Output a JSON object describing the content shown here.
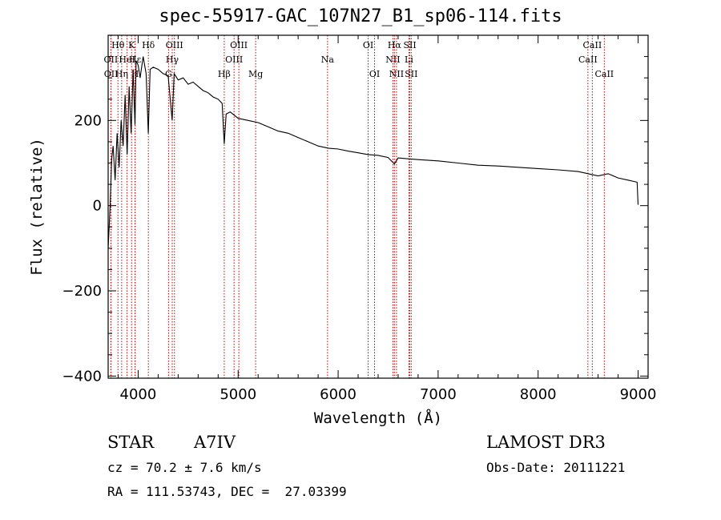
{
  "chart_data": {
    "type": "line",
    "title": "spec-55917-GAC_107N27_B1_sp06-114.fits",
    "xlabel": "Wavelength (Å)",
    "ylabel": "Flux (relative)",
    "xlim": [
      3700,
      9100
    ],
    "ylim": [
      -405,
      400
    ],
    "xticks": [
      4000,
      5000,
      6000,
      7000,
      8000,
      9000
    ],
    "yticks": [
      -400,
      -200,
      0,
      200
    ],
    "xtick_labels": [
      "4000",
      "5000",
      "6000",
      "7000",
      "8000",
      "9000"
    ],
    "ytick_labels": [
      "−400",
      "−200",
      "0",
      "200"
    ],
    "series": [
      {
        "name": "spectrum",
        "x": [
          3700,
          3720,
          3735,
          3750,
          3770,
          3790,
          3810,
          3830,
          3850,
          3870,
          3890,
          3910,
          3930,
          3950,
          3968,
          3980,
          4000,
          4020,
          4050,
          4080,
          4101,
          4120,
          4150,
          4200,
          4250,
          4300,
          4340,
          4360,
          4400,
          4450,
          4500,
          4550,
          4600,
          4650,
          4700,
          4750,
          4800,
          4840,
          4861,
          4880,
          4920,
          5000,
          5100,
          5200,
          5300,
          5400,
          5500,
          5600,
          5700,
          5800,
          5900,
          6000,
          6100,
          6200,
          6300,
          6400,
          6500,
          6563,
          6600,
          6700,
          6800,
          7000,
          7200,
          7400,
          7600,
          7800,
          8000,
          8200,
          8400,
          8500,
          8600,
          8700,
          8800,
          8900,
          8990,
          9000
        ],
        "y": [
          -100,
          0,
          110,
          140,
          60,
          170,
          90,
          200,
          140,
          260,
          120,
          280,
          170,
          320,
          190,
          340,
          330,
          300,
          350,
          310,
          170,
          320,
          325,
          320,
          310,
          305,
          200,
          310,
          295,
          300,
          285,
          290,
          280,
          270,
          265,
          255,
          250,
          240,
          145,
          215,
          220,
          205,
          200,
          195,
          185,
          175,
          170,
          160,
          150,
          140,
          135,
          133,
          128,
          124,
          120,
          118,
          113,
          98,
          112,
          110,
          108,
          105,
          100,
          95,
          93,
          90,
          87,
          84,
          80,
          75,
          70,
          75,
          65,
          60,
          55,
          2
        ]
      }
    ],
    "line_markers": [
      {
        "label": "Hθ",
        "x": 3798,
        "row": 1
      },
      {
        "label": "OII",
        "x": 3727,
        "row": 2
      },
      {
        "label": "OII",
        "x": 3729,
        "row": 3
      },
      {
        "label": "Hη",
        "x": 3835,
        "row": 3
      },
      {
        "label": "HeI",
        "x": 3889,
        "row": 2
      },
      {
        "label": "K",
        "x": 3934,
        "row": 1
      },
      {
        "label": "H",
        "x": 3969,
        "row": 3
      },
      {
        "label": "Hδ",
        "x": 4102,
        "row": 1
      },
      {
        "label": "Hε",
        "x": 3970,
        "row": 2
      },
      {
        "label": "OIII",
        "x": 4363,
        "row": 1
      },
      {
        "label": "Hγ",
        "x": 4341,
        "row": 2
      },
      {
        "label": "G",
        "x": 4304,
        "row": 3
      },
      {
        "label": "Hβ",
        "x": 4861,
        "row": 3
      },
      {
        "label": "OIII",
        "x": 4959,
        "row": 2
      },
      {
        "label": "OIII",
        "x": 5007,
        "row": 1
      },
      {
        "label": "Mg",
        "x": 5175,
        "row": 3
      },
      {
        "label": "Na",
        "x": 5894,
        "row": 2
      },
      {
        "label": "OI",
        "x": 6300,
        "row": 1
      },
      {
        "label": "OI",
        "x": 6364,
        "row": 3
      },
      {
        "label": "Hα",
        "x": 6563,
        "row": 1
      },
      {
        "label": "NII",
        "x": 6548,
        "row": 2
      },
      {
        "label": "NII",
        "x": 6584,
        "row": 3
      },
      {
        "label": "SII",
        "x": 6717,
        "row": 1
      },
      {
        "label": "Li",
        "x": 6708,
        "row": 2
      },
      {
        "label": "SII",
        "x": 6731,
        "row": 3
      },
      {
        "label": "CaII",
        "x": 8542,
        "row": 1
      },
      {
        "label": "CaII",
        "x": 8498,
        "row": 2
      },
      {
        "label": "CaII",
        "x": 8662,
        "row": 3
      }
    ]
  },
  "info": {
    "star_class": "STAR",
    "subclass": "A7IV",
    "survey": "LAMOST DR3",
    "cz": "cz = 70.2 ± 7.6 km/s",
    "obs_date": "Obs-Date: 20111221",
    "coords": "RA = 111.53743, DEC =  27.03399"
  },
  "colors": {
    "line": "#000000",
    "marker": "#c00000",
    "background": "#ffffff"
  }
}
